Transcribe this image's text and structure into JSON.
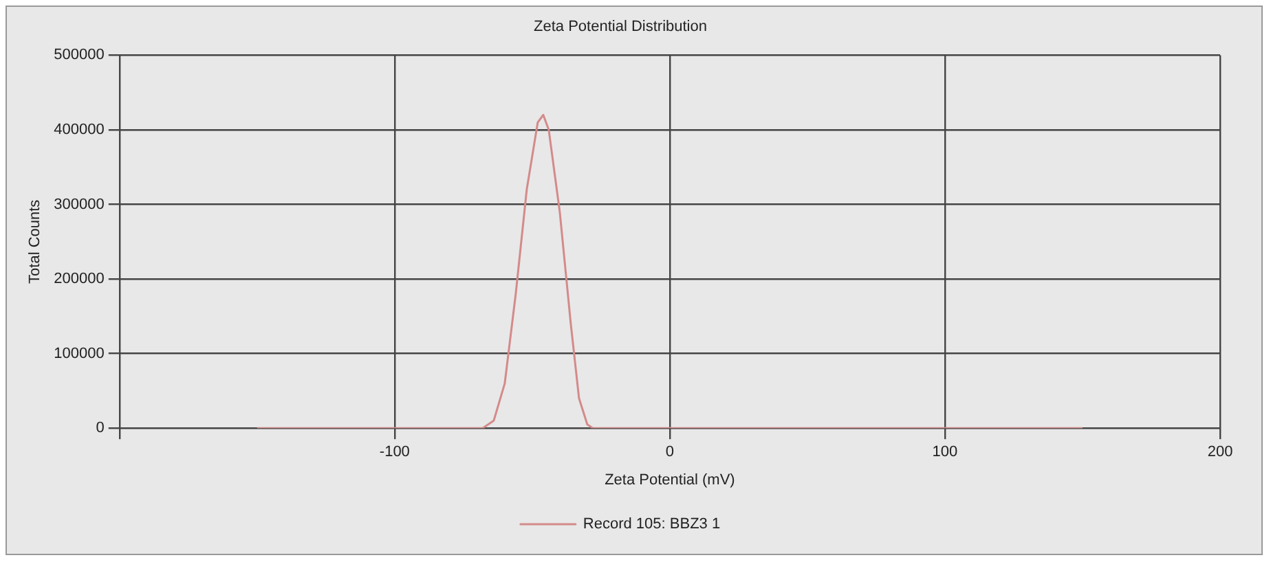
{
  "chart_data": {
    "type": "line",
    "title": "Zeta Potential Distribution",
    "xlabel": "Zeta Potential (mV)",
    "ylabel": "Total Counts",
    "x": [
      -150,
      -68,
      -64,
      -60,
      -56,
      -52,
      -48,
      -46,
      -44,
      -40,
      -36,
      -33,
      -30,
      -28,
      150
    ],
    "series": [
      {
        "name": "Record 105: BBZ3 1",
        "color": "#d48a8a",
        "values": [
          0,
          0,
          10000,
          60000,
          180000,
          320000,
          410000,
          420000,
          400000,
          290000,
          140000,
          40000,
          5000,
          0,
          0
        ]
      }
    ],
    "xlim": [
      -200,
      200
    ],
    "xticks": [
      {
        "value": -200,
        "label": null
      },
      -100,
      0,
      100,
      200
    ],
    "ylim": [
      0,
      500000
    ],
    "yticks": [
      0,
      100000,
      200000,
      300000,
      400000,
      500000
    ],
    "grid": true,
    "legend": "bottom",
    "marker": "none",
    "line_style": "solid"
  }
}
